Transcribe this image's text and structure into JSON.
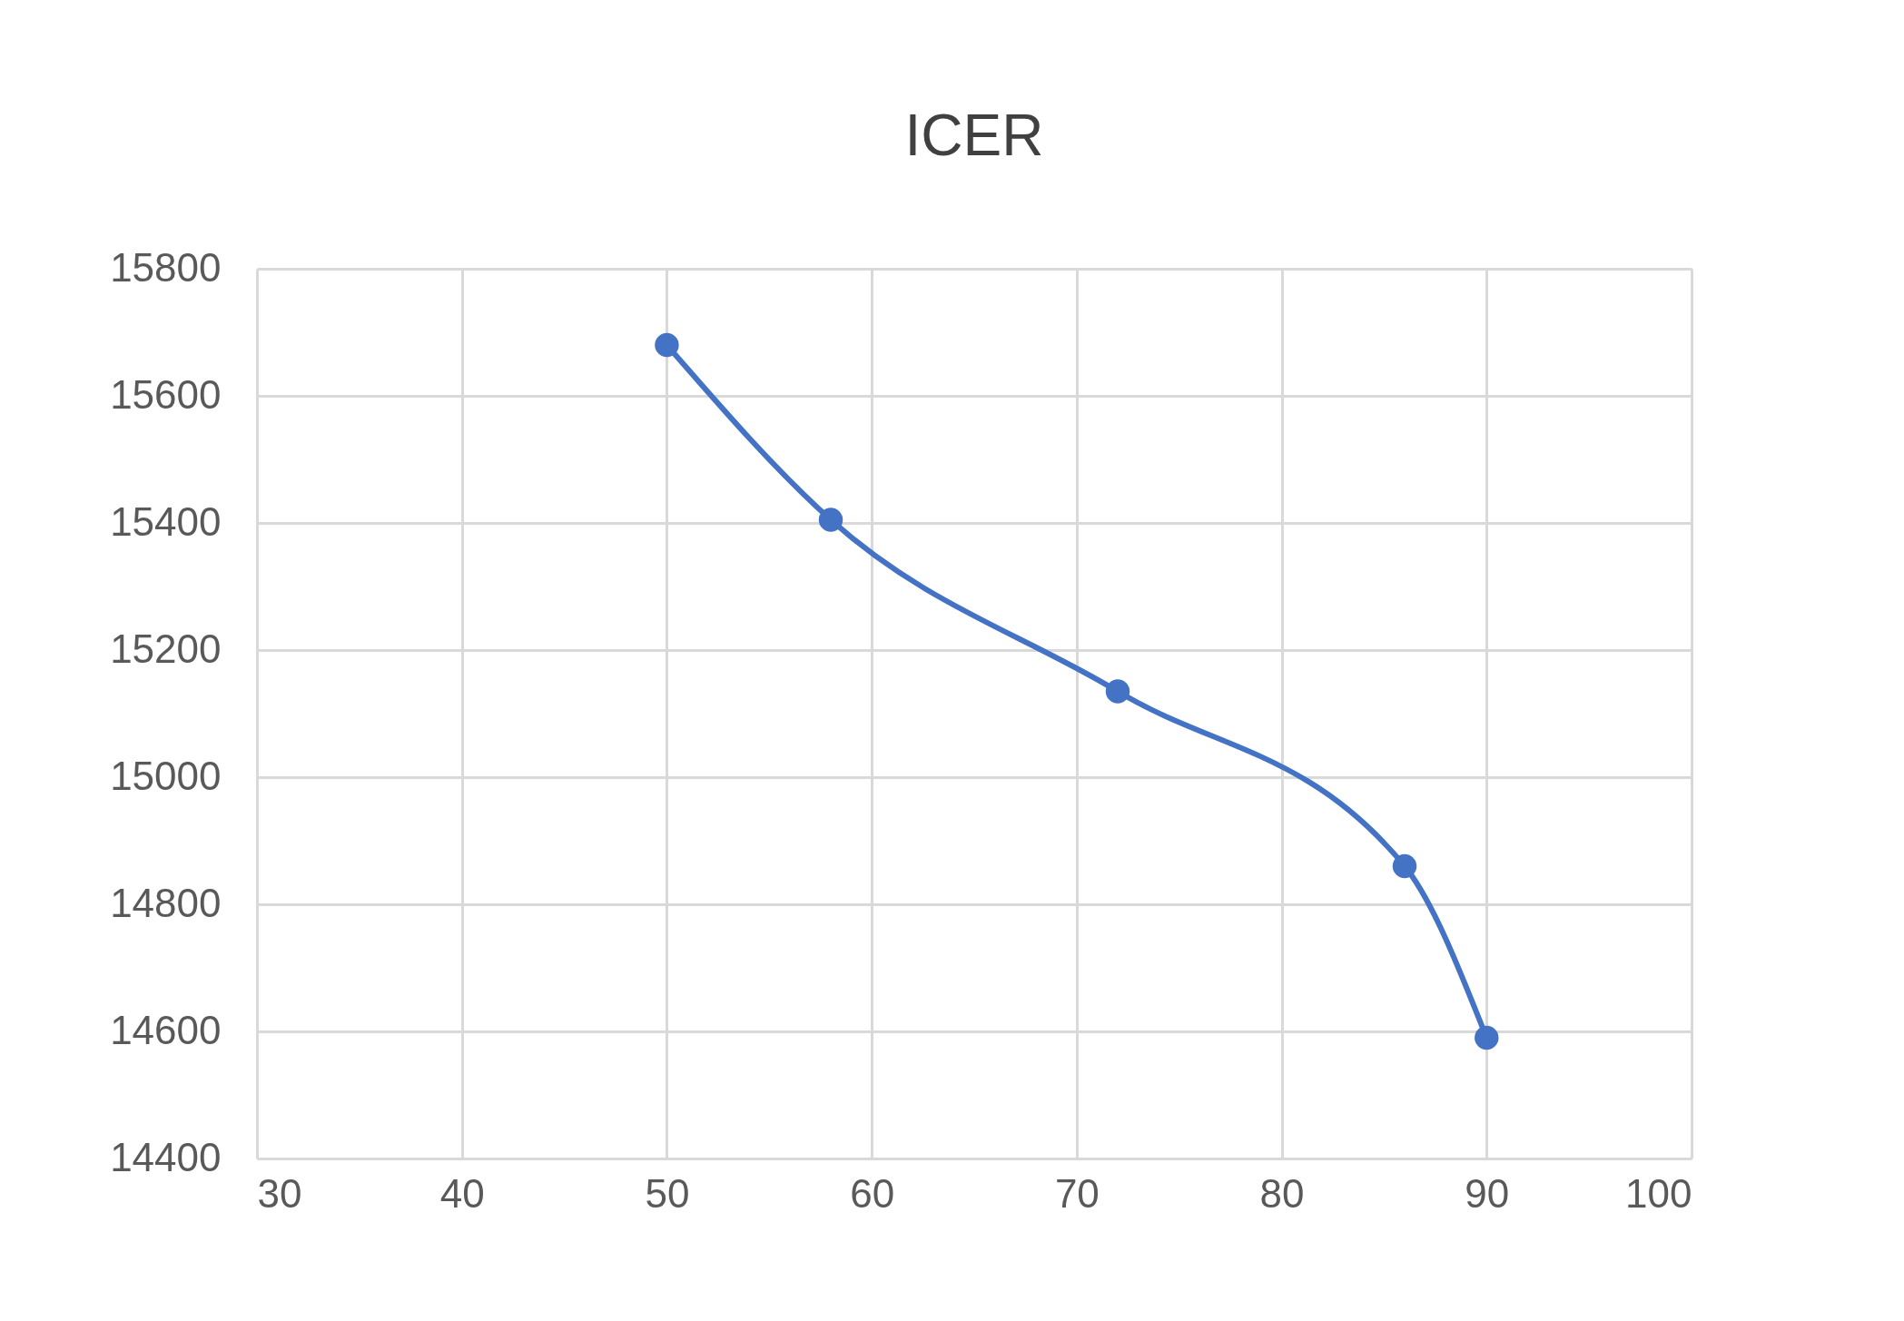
{
  "chart_data": {
    "type": "line",
    "title": "ICER",
    "x": [
      50,
      58,
      72,
      86,
      90
    ],
    "series": [
      {
        "color": "#4472c4",
        "values": [
          15680,
          15405,
          15135,
          14860,
          14590
        ]
      }
    ],
    "xlim": [
      30,
      100
    ],
    "xticks": [
      30,
      40,
      50,
      60,
      70,
      80,
      90,
      100
    ],
    "ylim": [
      14400,
      15800
    ],
    "yticks": [
      14400,
      14600,
      14800,
      15000,
      15200,
      15400,
      15600,
      15800
    ],
    "grid": true,
    "marker": "circle",
    "line_style": "solid"
  }
}
